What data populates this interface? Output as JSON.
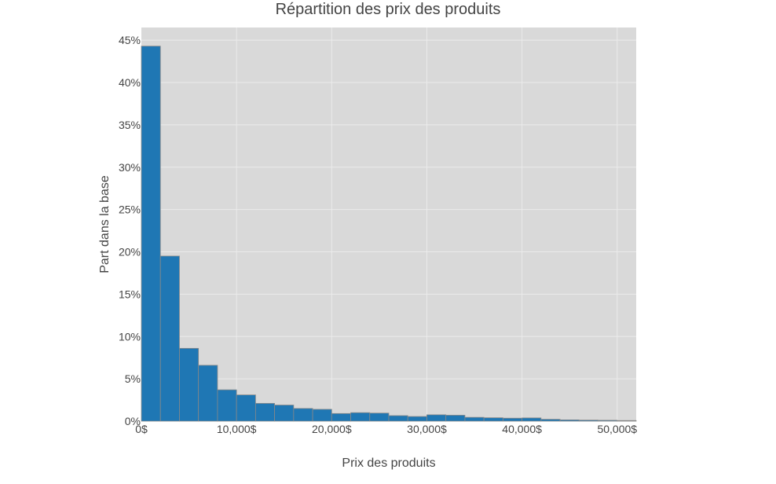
{
  "chart_data": {
    "type": "bar",
    "title": "Répartition des prix des produits",
    "xlabel": "Prix des produits",
    "ylabel": "Part dans la base",
    "x_range": [
      0,
      52000
    ],
    "y_range": [
      0,
      46.5
    ],
    "bin_width": 2000,
    "x_ticks": [
      {
        "value": 0,
        "label": "0$"
      },
      {
        "value": 10000,
        "label": "10,000$"
      },
      {
        "value": 20000,
        "label": "20,000$"
      },
      {
        "value": 30000,
        "label": "30,000$"
      },
      {
        "value": 40000,
        "label": "40,000$"
      },
      {
        "value": 50000,
        "label": "50,000$"
      }
    ],
    "y_ticks": [
      {
        "value": 0,
        "label": "0%"
      },
      {
        "value": 5,
        "label": "5%"
      },
      {
        "value": 10,
        "label": "10%"
      },
      {
        "value": 15,
        "label": "15%"
      },
      {
        "value": 20,
        "label": "20%"
      },
      {
        "value": 25,
        "label": "25%"
      },
      {
        "value": 30,
        "label": "30%"
      },
      {
        "value": 35,
        "label": "35%"
      },
      {
        "value": 40,
        "label": "40%"
      },
      {
        "value": 45,
        "label": "45%"
      }
    ],
    "bins_start": [
      0,
      2000,
      4000,
      6000,
      8000,
      10000,
      12000,
      14000,
      16000,
      18000,
      20000,
      22000,
      24000,
      26000,
      28000,
      30000,
      32000,
      34000,
      36000,
      38000,
      40000,
      42000,
      44000,
      46000,
      48000,
      50000
    ],
    "values": [
      44.3,
      19.5,
      8.6,
      6.6,
      3.7,
      3.1,
      2.1,
      1.9,
      1.5,
      1.4,
      0.9,
      1.0,
      0.95,
      0.65,
      0.55,
      0.75,
      0.7,
      0.45,
      0.4,
      0.35,
      0.38,
      0.22,
      0.15,
      0.12,
      0.1,
      0.07
    ],
    "grid": true,
    "bar_color": "#1f77b4",
    "bar_edge_color": "#888888",
    "plot_background": "#d9d9d9",
    "grid_color": "#ebebeb"
  }
}
